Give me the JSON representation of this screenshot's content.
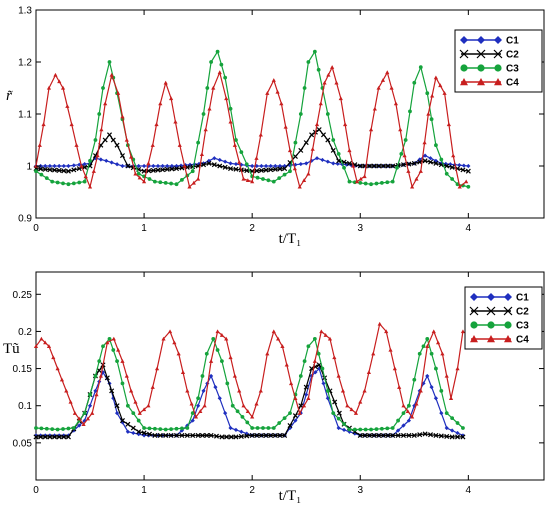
{
  "chart_data": [
    {
      "type": "line",
      "title": "",
      "xlabel": "t/T₁",
      "ylabel": "r̃",
      "xlim": [
        0,
        4.7
      ],
      "ylim": [
        0.9,
        1.3
      ],
      "xticks": [
        "0",
        "1",
        "2",
        "3",
        "4"
      ],
      "yticks": [
        "0.9",
        "1",
        "1.1",
        "1.2",
        "1.3"
      ],
      "legend": "top-right",
      "grid": false,
      "series": [
        {
          "name": "C1",
          "color": "#1f2fbf",
          "marker": "diamond",
          "x": [
            0,
            0.3,
            0.5,
            0.55,
            0.65,
            0.8,
            1.0,
            1.3,
            1.55,
            1.65,
            1.8,
            2.0,
            2.3,
            2.5,
            2.6,
            2.75,
            3.0,
            3.3,
            3.5,
            3.6,
            3.75,
            4.0
          ],
          "y": [
            1.0,
            1.0,
            1.005,
            1.015,
            1.01,
            1.0,
            1.0,
            1.0,
            1.005,
            1.015,
            1.005,
            1.0,
            1.0,
            1.005,
            1.015,
            1.005,
            1.0,
            1.0,
            1.005,
            1.02,
            1.005,
            1.0
          ]
        },
        {
          "name": "C2",
          "color": "#000000",
          "marker": "x",
          "x": [
            0,
            0.3,
            0.5,
            0.6,
            0.68,
            0.75,
            0.85,
            1.0,
            1.3,
            1.5,
            1.6,
            1.7,
            1.8,
            2.0,
            2.3,
            2.45,
            2.55,
            2.62,
            2.7,
            2.8,
            3.0,
            3.3,
            3.5,
            3.6,
            3.7,
            3.8,
            4.0
          ],
          "y": [
            0.995,
            0.99,
            1.0,
            1.04,
            1.06,
            1.04,
            1.0,
            0.99,
            0.995,
            1.0,
            1.005,
            1.0,
            0.995,
            0.99,
            0.995,
            1.03,
            1.06,
            1.07,
            1.05,
            1.01,
            1.0,
            1.0,
            1.005,
            1.01,
            1.005,
            1.0,
            0.99
          ]
        },
        {
          "name": "C3",
          "color": "#15a33c",
          "marker": "circle",
          "x": [
            0,
            0.15,
            0.3,
            0.45,
            0.55,
            0.62,
            0.68,
            0.75,
            0.85,
            0.95,
            1.1,
            1.3,
            1.45,
            1.55,
            1.62,
            1.68,
            1.75,
            1.85,
            2.0,
            2.2,
            2.35,
            2.45,
            2.52,
            2.58,
            2.65,
            2.75,
            2.9,
            3.1,
            3.3,
            3.42,
            3.5,
            3.56,
            3.62,
            3.7,
            3.8,
            3.9,
            4.0
          ],
          "y": [
            0.99,
            0.97,
            0.965,
            0.97,
            1.05,
            1.15,
            1.2,
            1.14,
            1.04,
            0.985,
            0.97,
            0.965,
            0.99,
            1.1,
            1.2,
            1.22,
            1.17,
            1.05,
            0.98,
            0.97,
            0.99,
            1.1,
            1.2,
            1.22,
            1.15,
            1.05,
            0.97,
            0.965,
            0.97,
            1.05,
            1.16,
            1.19,
            1.14,
            1.04,
            0.985,
            0.965,
            0.96
          ]
        },
        {
          "name": "C4",
          "color": "#c81e1e",
          "marker": "triangle",
          "x": [
            0,
            0.07,
            0.12,
            0.18,
            0.25,
            0.33,
            0.42,
            0.5,
            0.57,
            0.64,
            0.7,
            0.76,
            0.84,
            0.92,
            1.0,
            1.08,
            1.15,
            1.2,
            1.25,
            1.33,
            1.42,
            1.5,
            1.57,
            1.64,
            1.7,
            1.76,
            1.84,
            1.92,
            2.0,
            2.08,
            2.14,
            2.2,
            2.27,
            2.35,
            2.44,
            2.52,
            2.6,
            2.67,
            2.74,
            2.82,
            2.9,
            2.97,
            3.04,
            3.1,
            3.17,
            3.25,
            3.33,
            3.41,
            3.48,
            3.56,
            3.63,
            3.7,
            3.78,
            3.86,
            3.92,
            3.98
          ],
          "y": [
            1.0,
            1.08,
            1.15,
            1.175,
            1.15,
            1.08,
            1.0,
            0.96,
            1.02,
            1.12,
            1.175,
            1.14,
            1.05,
            0.985,
            0.97,
            1.04,
            1.12,
            1.16,
            1.13,
            1.04,
            0.96,
            0.975,
            1.07,
            1.15,
            1.18,
            1.13,
            1.04,
            0.975,
            0.97,
            1.06,
            1.14,
            1.165,
            1.12,
            1.03,
            0.96,
            0.985,
            1.08,
            1.16,
            1.19,
            1.13,
            1.03,
            0.97,
            0.98,
            1.07,
            1.15,
            1.18,
            1.12,
            1.02,
            0.96,
            0.99,
            1.1,
            1.17,
            1.14,
            1.02,
            0.96,
            0.97
          ]
        }
      ]
    },
    {
      "type": "line",
      "title": "",
      "xlabel": "t/T₁",
      "ylabel": "Tũ",
      "xlim": [
        0,
        4.7
      ],
      "ylim": [
        0.0,
        0.28
      ],
      "xticks": [
        "0",
        "1",
        "2",
        "3",
        "4"
      ],
      "yticks": [
        "0.05",
        "0.1",
        "0.15",
        "0.2",
        "0.25"
      ],
      "legend": "top-right",
      "grid": false,
      "series": [
        {
          "name": "C1",
          "color": "#1f2fbf",
          "marker": "diamond",
          "x": [
            0,
            0.3,
            0.45,
            0.55,
            0.62,
            0.68,
            0.75,
            0.85,
            1.0,
            1.3,
            1.45,
            1.55,
            1.62,
            1.7,
            1.8,
            2.0,
            2.3,
            2.45,
            2.55,
            2.62,
            2.7,
            2.8,
            3.0,
            3.3,
            3.45,
            3.55,
            3.62,
            3.7,
            3.8,
            3.95
          ],
          "y": [
            0.06,
            0.06,
            0.08,
            0.12,
            0.145,
            0.13,
            0.09,
            0.065,
            0.06,
            0.06,
            0.08,
            0.12,
            0.14,
            0.11,
            0.07,
            0.06,
            0.06,
            0.09,
            0.14,
            0.15,
            0.11,
            0.07,
            0.06,
            0.06,
            0.08,
            0.12,
            0.14,
            0.11,
            0.07,
            0.06
          ]
        },
        {
          "name": "C2",
          "color": "#000000",
          "marker": "x",
          "x": [
            0,
            0.3,
            0.45,
            0.55,
            0.62,
            0.7,
            0.8,
            0.95,
            1.1,
            1.3,
            1.5,
            1.62,
            1.72,
            1.85,
            2.0,
            2.3,
            2.45,
            2.55,
            2.62,
            2.72,
            2.85,
            3.0,
            3.3,
            3.5,
            3.6,
            3.7,
            3.85,
            3.95
          ],
          "y": [
            0.058,
            0.058,
            0.09,
            0.14,
            0.155,
            0.12,
            0.08,
            0.065,
            0.06,
            0.06,
            0.06,
            0.06,
            0.058,
            0.058,
            0.06,
            0.06,
            0.1,
            0.15,
            0.155,
            0.12,
            0.075,
            0.06,
            0.06,
            0.06,
            0.062,
            0.06,
            0.058,
            0.058
          ]
        },
        {
          "name": "C3",
          "color": "#15a33c",
          "marker": "circle",
          "x": [
            0,
            0.2,
            0.35,
            0.45,
            0.55,
            0.62,
            0.68,
            0.75,
            0.85,
            1.0,
            1.2,
            1.4,
            1.5,
            1.58,
            1.64,
            1.72,
            1.82,
            2.0,
            2.2,
            2.35,
            2.45,
            2.52,
            2.58,
            2.65,
            2.75,
            2.9,
            3.1,
            3.3,
            3.45,
            3.55,
            3.62,
            3.7,
            3.8,
            3.95
          ],
          "y": [
            0.07,
            0.068,
            0.07,
            0.09,
            0.14,
            0.18,
            0.19,
            0.16,
            0.1,
            0.07,
            0.068,
            0.07,
            0.11,
            0.17,
            0.19,
            0.16,
            0.1,
            0.07,
            0.07,
            0.09,
            0.14,
            0.18,
            0.19,
            0.15,
            0.09,
            0.068,
            0.068,
            0.07,
            0.1,
            0.17,
            0.19,
            0.15,
            0.09,
            0.07
          ]
        },
        {
          "name": "C4",
          "color": "#c81e1e",
          "marker": "triangle",
          "x": [
            0,
            0.05,
            0.12,
            0.2,
            0.28,
            0.36,
            0.44,
            0.52,
            0.6,
            0.66,
            0.72,
            0.8,
            0.88,
            0.96,
            1.04,
            1.12,
            1.18,
            1.24,
            1.32,
            1.4,
            1.48,
            1.56,
            1.62,
            1.68,
            1.76,
            1.84,
            1.92,
            2.0,
            2.08,
            2.14,
            2.2,
            2.28,
            2.36,
            2.44,
            2.52,
            2.58,
            2.64,
            2.72,
            2.8,
            2.88,
            2.96,
            3.04,
            3.12,
            3.18,
            3.24,
            3.32,
            3.4,
            3.48,
            3.56,
            3.62,
            3.68,
            3.76,
            3.84,
            3.9,
            3.95
          ],
          "y": [
            0.18,
            0.19,
            0.18,
            0.15,
            0.12,
            0.09,
            0.075,
            0.09,
            0.14,
            0.185,
            0.19,
            0.16,
            0.12,
            0.09,
            0.1,
            0.15,
            0.19,
            0.2,
            0.17,
            0.12,
            0.085,
            0.1,
            0.16,
            0.2,
            0.19,
            0.14,
            0.1,
            0.085,
            0.12,
            0.17,
            0.2,
            0.18,
            0.13,
            0.09,
            0.11,
            0.16,
            0.2,
            0.19,
            0.14,
            0.1,
            0.09,
            0.12,
            0.17,
            0.21,
            0.2,
            0.15,
            0.1,
            0.085,
            0.12,
            0.18,
            0.2,
            0.17,
            0.11,
            0.15,
            0.2
          ]
        }
      ]
    }
  ]
}
